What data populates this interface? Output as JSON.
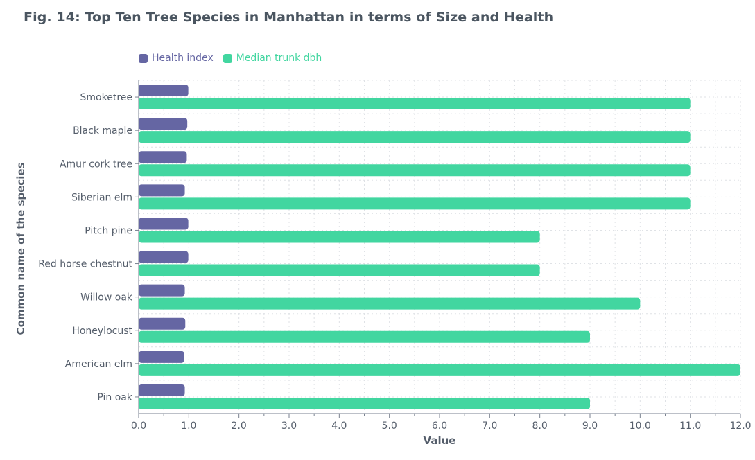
{
  "title": "Fig. 14: Top Ten Tree Species in Manhattan in terms of Size and Health",
  "chart_data": {
    "type": "bar",
    "orientation": "horizontal",
    "categories": [
      "Smoketree",
      "Black maple",
      "Amur cork tree",
      "Siberian elm",
      "Pitch pine",
      "Red horse chestnut",
      "Willow oak",
      "Honeylocust",
      "American elm",
      "Pin oak"
    ],
    "series": [
      {
        "name": "Health index",
        "color": "#6566a3",
        "values": [
          0.99,
          0.97,
          0.96,
          0.92,
          0.99,
          0.99,
          0.92,
          0.93,
          0.91,
          0.92
        ]
      },
      {
        "name": "Median trunk dbh",
        "color": "#42d6a0",
        "values": [
          11,
          11,
          11,
          11,
          8,
          8,
          10,
          9,
          12,
          9
        ]
      }
    ],
    "xlabel": "Value",
    "ylabel": "Common name of the species",
    "xlim": [
      0,
      12
    ],
    "xticks": [
      "0.0",
      "1.0",
      "2.0",
      "3.0",
      "4.0",
      "5.0",
      "6.0",
      "7.0",
      "8.0",
      "9.0",
      "10.0",
      "11.0",
      "12.0"
    ],
    "grid": true,
    "legend_position": "top-left"
  }
}
